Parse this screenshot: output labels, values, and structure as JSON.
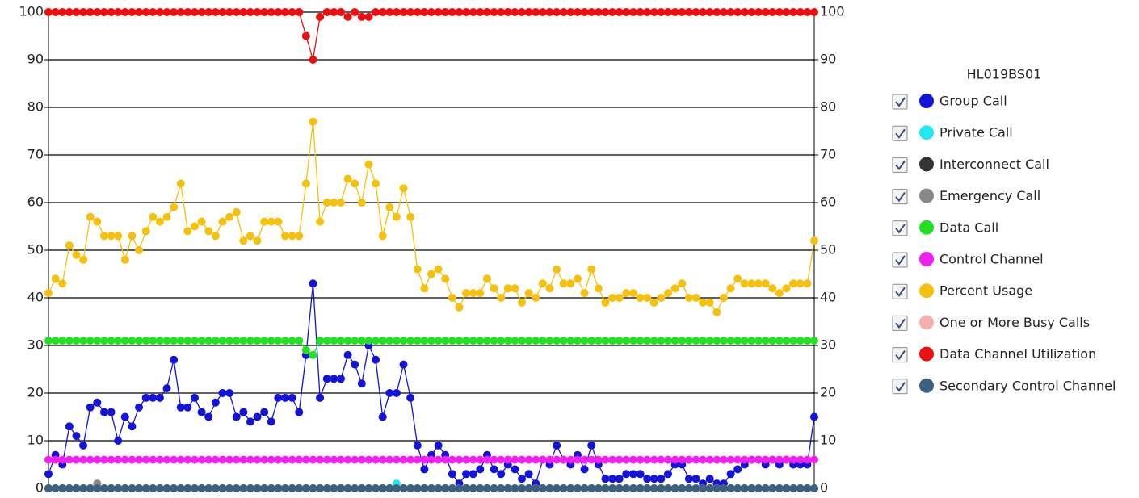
{
  "chart_data": {
    "type": "line",
    "legend_title": "HL019BS01",
    "ylim": [
      0,
      100
    ],
    "yticks": [
      0,
      10,
      20,
      30,
      40,
      50,
      60,
      70,
      80,
      90,
      100
    ],
    "y2lim": [
      0,
      100
    ],
    "y2ticks": [
      0,
      10,
      20,
      30,
      40,
      50,
      60,
      70,
      80,
      90,
      100
    ],
    "grid": true,
    "series": [
      {
        "name": "Group Call",
        "color": "#1414d8",
        "values": [
          3,
          7,
          5,
          13,
          11,
          9,
          17,
          18,
          16,
          16,
          10,
          15,
          13,
          17,
          19,
          19,
          19,
          21,
          27,
          17,
          17,
          19,
          16,
          15,
          18,
          20,
          20,
          15,
          16,
          14,
          15,
          16,
          14,
          19,
          19,
          19,
          16,
          28,
          43,
          19,
          23,
          23,
          23,
          28,
          26,
          22,
          30,
          27,
          15,
          20,
          20,
          26,
          19,
          9,
          4,
          7,
          9,
          7,
          3,
          1,
          3,
          3,
          4,
          7,
          4,
          3,
          5,
          4,
          2,
          3,
          1,
          6,
          5,
          9,
          6,
          5,
          7,
          4,
          9,
          5,
          2,
          2,
          2,
          3,
          3,
          3,
          2,
          2,
          2,
          3,
          5,
          5,
          2,
          2,
          1,
          2,
          1,
          1,
          3,
          4,
          5,
          6,
          6,
          5,
          6,
          5,
          6,
          5,
          5,
          5,
          15
        ]
      },
      {
        "name": "Private Call",
        "color": "#22e8f0",
        "values": [
          0,
          0,
          0,
          0,
          0,
          0,
          0,
          0,
          0,
          0,
          0,
          0,
          0,
          0,
          0,
          0,
          0,
          0,
          0,
          0,
          0,
          0,
          0,
          0,
          0,
          0,
          0,
          0,
          0,
          0,
          0,
          0,
          0,
          0,
          0,
          0,
          0,
          0,
          0,
          0,
          0,
          0,
          0,
          0,
          0,
          0,
          0,
          0,
          0,
          0,
          1,
          0,
          0,
          0,
          0,
          0,
          0,
          0,
          0,
          0,
          0,
          0,
          0,
          0,
          0,
          0,
          0,
          0,
          0,
          0,
          0,
          0,
          0,
          0,
          0,
          0,
          0,
          0,
          0,
          0,
          0,
          0,
          0,
          0,
          0,
          0,
          0,
          0,
          0,
          0,
          0,
          0,
          0,
          0,
          0,
          0,
          0,
          0,
          0,
          0,
          0,
          0,
          0,
          0,
          0,
          0,
          0,
          0,
          0,
          0,
          0
        ]
      },
      {
        "name": "Interconnect Call",
        "color": "#333333",
        "values": [
          0,
          0,
          0,
          0,
          0,
          0,
          0,
          0,
          0,
          0,
          0,
          0,
          0,
          0,
          0,
          0,
          0,
          0,
          0,
          0,
          0,
          0,
          0,
          0,
          0,
          0,
          0,
          0,
          0,
          0,
          0,
          0,
          0,
          0,
          0,
          0,
          0,
          0,
          0,
          0,
          0,
          0,
          0,
          0,
          0,
          0,
          0,
          0,
          0,
          0,
          0,
          0,
          0,
          0,
          0,
          0,
          0,
          0,
          0,
          0,
          0,
          0,
          0,
          0,
          0,
          0,
          0,
          0,
          0,
          0,
          0,
          0,
          0,
          0,
          0,
          0,
          0,
          0,
          0,
          0,
          0,
          0,
          0,
          0,
          0,
          0,
          0,
          0,
          0,
          0,
          0,
          0,
          0,
          0,
          0,
          0,
          0,
          0,
          0,
          0,
          0,
          0,
          0,
          0,
          0,
          0,
          0,
          0,
          0,
          0,
          0
        ]
      },
      {
        "name": "Emergency Call",
        "color": "#888888",
        "values": [
          0,
          0,
          0,
          0,
          0,
          0,
          0,
          1,
          0,
          0,
          0,
          0,
          0,
          0,
          0,
          0,
          0,
          0,
          0,
          0,
          0,
          0,
          0,
          0,
          0,
          0,
          0,
          0,
          0,
          0,
          0,
          0,
          0,
          0,
          0,
          0,
          0,
          0,
          0,
          0,
          0,
          0,
          0,
          0,
          0,
          0,
          0,
          0,
          0,
          0,
          0,
          0,
          0,
          0,
          0,
          0,
          0,
          0,
          0,
          0,
          0,
          0,
          0,
          0,
          0,
          0,
          0,
          0,
          0,
          0,
          0,
          0,
          0,
          0,
          0,
          0,
          0,
          0,
          0,
          0,
          0,
          0,
          0,
          0,
          0,
          0,
          0,
          0,
          0,
          0,
          0,
          0,
          0,
          0,
          0,
          0,
          0,
          0,
          0,
          0,
          0,
          0,
          0,
          0,
          0,
          0,
          0,
          0,
          0,
          0,
          0
        ]
      },
      {
        "name": "Data Call",
        "color": "#22e022",
        "values": [
          31,
          31,
          31,
          31,
          31,
          31,
          31,
          31,
          31,
          31,
          31,
          31,
          31,
          31,
          31,
          31,
          31,
          31,
          31,
          31,
          31,
          31,
          31,
          31,
          31,
          31,
          31,
          31,
          31,
          31,
          31,
          31,
          31,
          31,
          31,
          31,
          31,
          29,
          28,
          31,
          31,
          31,
          31,
          31,
          31,
          31,
          31,
          31,
          31,
          31,
          31,
          31,
          31,
          31,
          31,
          31,
          31,
          31,
          31,
          31,
          31,
          31,
          31,
          31,
          31,
          31,
          31,
          31,
          31,
          31,
          31,
          31,
          31,
          31,
          31,
          31,
          31,
          31,
          31,
          31,
          31,
          31,
          31,
          31,
          31,
          31,
          31,
          31,
          31,
          31,
          31,
          31,
          31,
          31,
          31,
          31,
          31,
          31,
          31,
          31,
          31,
          31,
          31,
          31,
          31,
          31,
          31,
          31,
          31,
          31,
          31
        ]
      },
      {
        "name": "Control Channel",
        "color": "#ee22ee",
        "values": [
          6,
          6,
          6,
          6,
          6,
          6,
          6,
          6,
          6,
          6,
          6,
          6,
          6,
          6,
          6,
          6,
          6,
          6,
          6,
          6,
          6,
          6,
          6,
          6,
          6,
          6,
          6,
          6,
          6,
          6,
          6,
          6,
          6,
          6,
          6,
          6,
          6,
          6,
          6,
          6,
          6,
          6,
          6,
          6,
          6,
          6,
          6,
          6,
          6,
          6,
          6,
          6,
          6,
          6,
          6,
          6,
          6,
          6,
          6,
          6,
          6,
          6,
          6,
          6,
          6,
          6,
          6,
          6,
          6,
          6,
          6,
          6,
          6,
          6,
          6,
          6,
          6,
          6,
          6,
          6,
          6,
          6,
          6,
          6,
          6,
          6,
          6,
          6,
          6,
          6,
          6,
          6,
          6,
          6,
          6,
          6,
          6,
          6,
          6,
          6,
          6,
          6,
          6,
          6,
          6,
          6,
          6,
          6,
          6,
          6,
          6
        ]
      },
      {
        "name": "Percent Usage",
        "color": "#f5c10e",
        "values": [
          41,
          44,
          43,
          51,
          49,
          48,
          57,
          56,
          53,
          53,
          53,
          48,
          53,
          50,
          54,
          57,
          56,
          57,
          59,
          64,
          54,
          55,
          56,
          54,
          53,
          56,
          57,
          58,
          52,
          53,
          52,
          56,
          56,
          56,
          53,
          53,
          53,
          64,
          77,
          56,
          60,
          60,
          60,
          65,
          64,
          60,
          68,
          64,
          53,
          59,
          57,
          63,
          57,
          46,
          42,
          45,
          46,
          44,
          40,
          38,
          41,
          41,
          41,
          44,
          42,
          40,
          42,
          42,
          39,
          41,
          40,
          43,
          42,
          46,
          43,
          43,
          44,
          41,
          46,
          42,
          39,
          40,
          40,
          41,
          41,
          40,
          40,
          39,
          40,
          41,
          42,
          43,
          40,
          40,
          39,
          39,
          37,
          40,
          42,
          44,
          43,
          43,
          43,
          43,
          42,
          41,
          42,
          43,
          43,
          43,
          52
        ]
      },
      {
        "name": "One or More Busy Calls",
        "color": "#f4afaf",
        "values": [
          0,
          0,
          0,
          0,
          0,
          0,
          0,
          0,
          0,
          0,
          0,
          0,
          0,
          0,
          0,
          0,
          0,
          0,
          0,
          0,
          0,
          0,
          0,
          0,
          0,
          0,
          0,
          0,
          0,
          0,
          0,
          0,
          0,
          0,
          0,
          0,
          0,
          0,
          0,
          0,
          0,
          0,
          0,
          0,
          0,
          0,
          0,
          0,
          0,
          0,
          0,
          0,
          0,
          0,
          0,
          0,
          0,
          0,
          0,
          0,
          0,
          0,
          0,
          0,
          0,
          0,
          0,
          0,
          0,
          0,
          0,
          0,
          0,
          0,
          0,
          0,
          0,
          0,
          0,
          0,
          0,
          0,
          0,
          0,
          0,
          0,
          0,
          0,
          0,
          0,
          0,
          0,
          0,
          0,
          0,
          0,
          0,
          0,
          0,
          0,
          0,
          0,
          0,
          0,
          0,
          0,
          0,
          0,
          0,
          0,
          0
        ]
      },
      {
        "name": "Data Channel Utilization",
        "color": "#e81010",
        "values": [
          100,
          100,
          100,
          100,
          100,
          100,
          100,
          100,
          100,
          100,
          100,
          100,
          100,
          100,
          100,
          100,
          100,
          100,
          100,
          100,
          100,
          100,
          100,
          100,
          100,
          100,
          100,
          100,
          100,
          100,
          100,
          100,
          100,
          100,
          100,
          100,
          100,
          95,
          90,
          99,
          100,
          100,
          100,
          99,
          100,
          99,
          99,
          100,
          100,
          100,
          100,
          100,
          100,
          100,
          100,
          100,
          100,
          100,
          100,
          100,
          100,
          100,
          100,
          100,
          100,
          100,
          100,
          100,
          100,
          100,
          100,
          100,
          100,
          100,
          100,
          100,
          100,
          100,
          100,
          100,
          100,
          100,
          100,
          100,
          100,
          100,
          100,
          100,
          100,
          100,
          100,
          100,
          100,
          100,
          100,
          100,
          100,
          100,
          100,
          100,
          100,
          100,
          100,
          100,
          100,
          100,
          100,
          100,
          100,
          100,
          100
        ]
      },
      {
        "name": "Secondary Control Channel",
        "color": "#3b6080",
        "values": [
          0,
          0,
          0,
          0,
          0,
          0,
          0,
          0,
          0,
          0,
          0,
          0,
          0,
          0,
          0,
          0,
          0,
          0,
          0,
          0,
          0,
          0,
          0,
          0,
          0,
          0,
          0,
          0,
          0,
          0,
          0,
          0,
          0,
          0,
          0,
          0,
          0,
          0,
          0,
          0,
          0,
          0,
          0,
          0,
          0,
          0,
          0,
          0,
          0,
          0,
          0,
          0,
          0,
          0,
          0,
          0,
          0,
          0,
          0,
          0,
          0,
          0,
          0,
          0,
          0,
          0,
          0,
          0,
          0,
          0,
          0,
          0,
          0,
          0,
          0,
          0,
          0,
          0,
          0,
          0,
          0,
          0,
          0,
          0,
          0,
          0,
          0,
          0,
          0,
          0,
          0,
          0,
          0,
          0,
          0,
          0,
          0,
          0,
          0,
          0,
          0,
          0,
          0,
          0,
          0,
          0,
          0,
          0,
          0,
          0,
          0
        ]
      }
    ]
  }
}
